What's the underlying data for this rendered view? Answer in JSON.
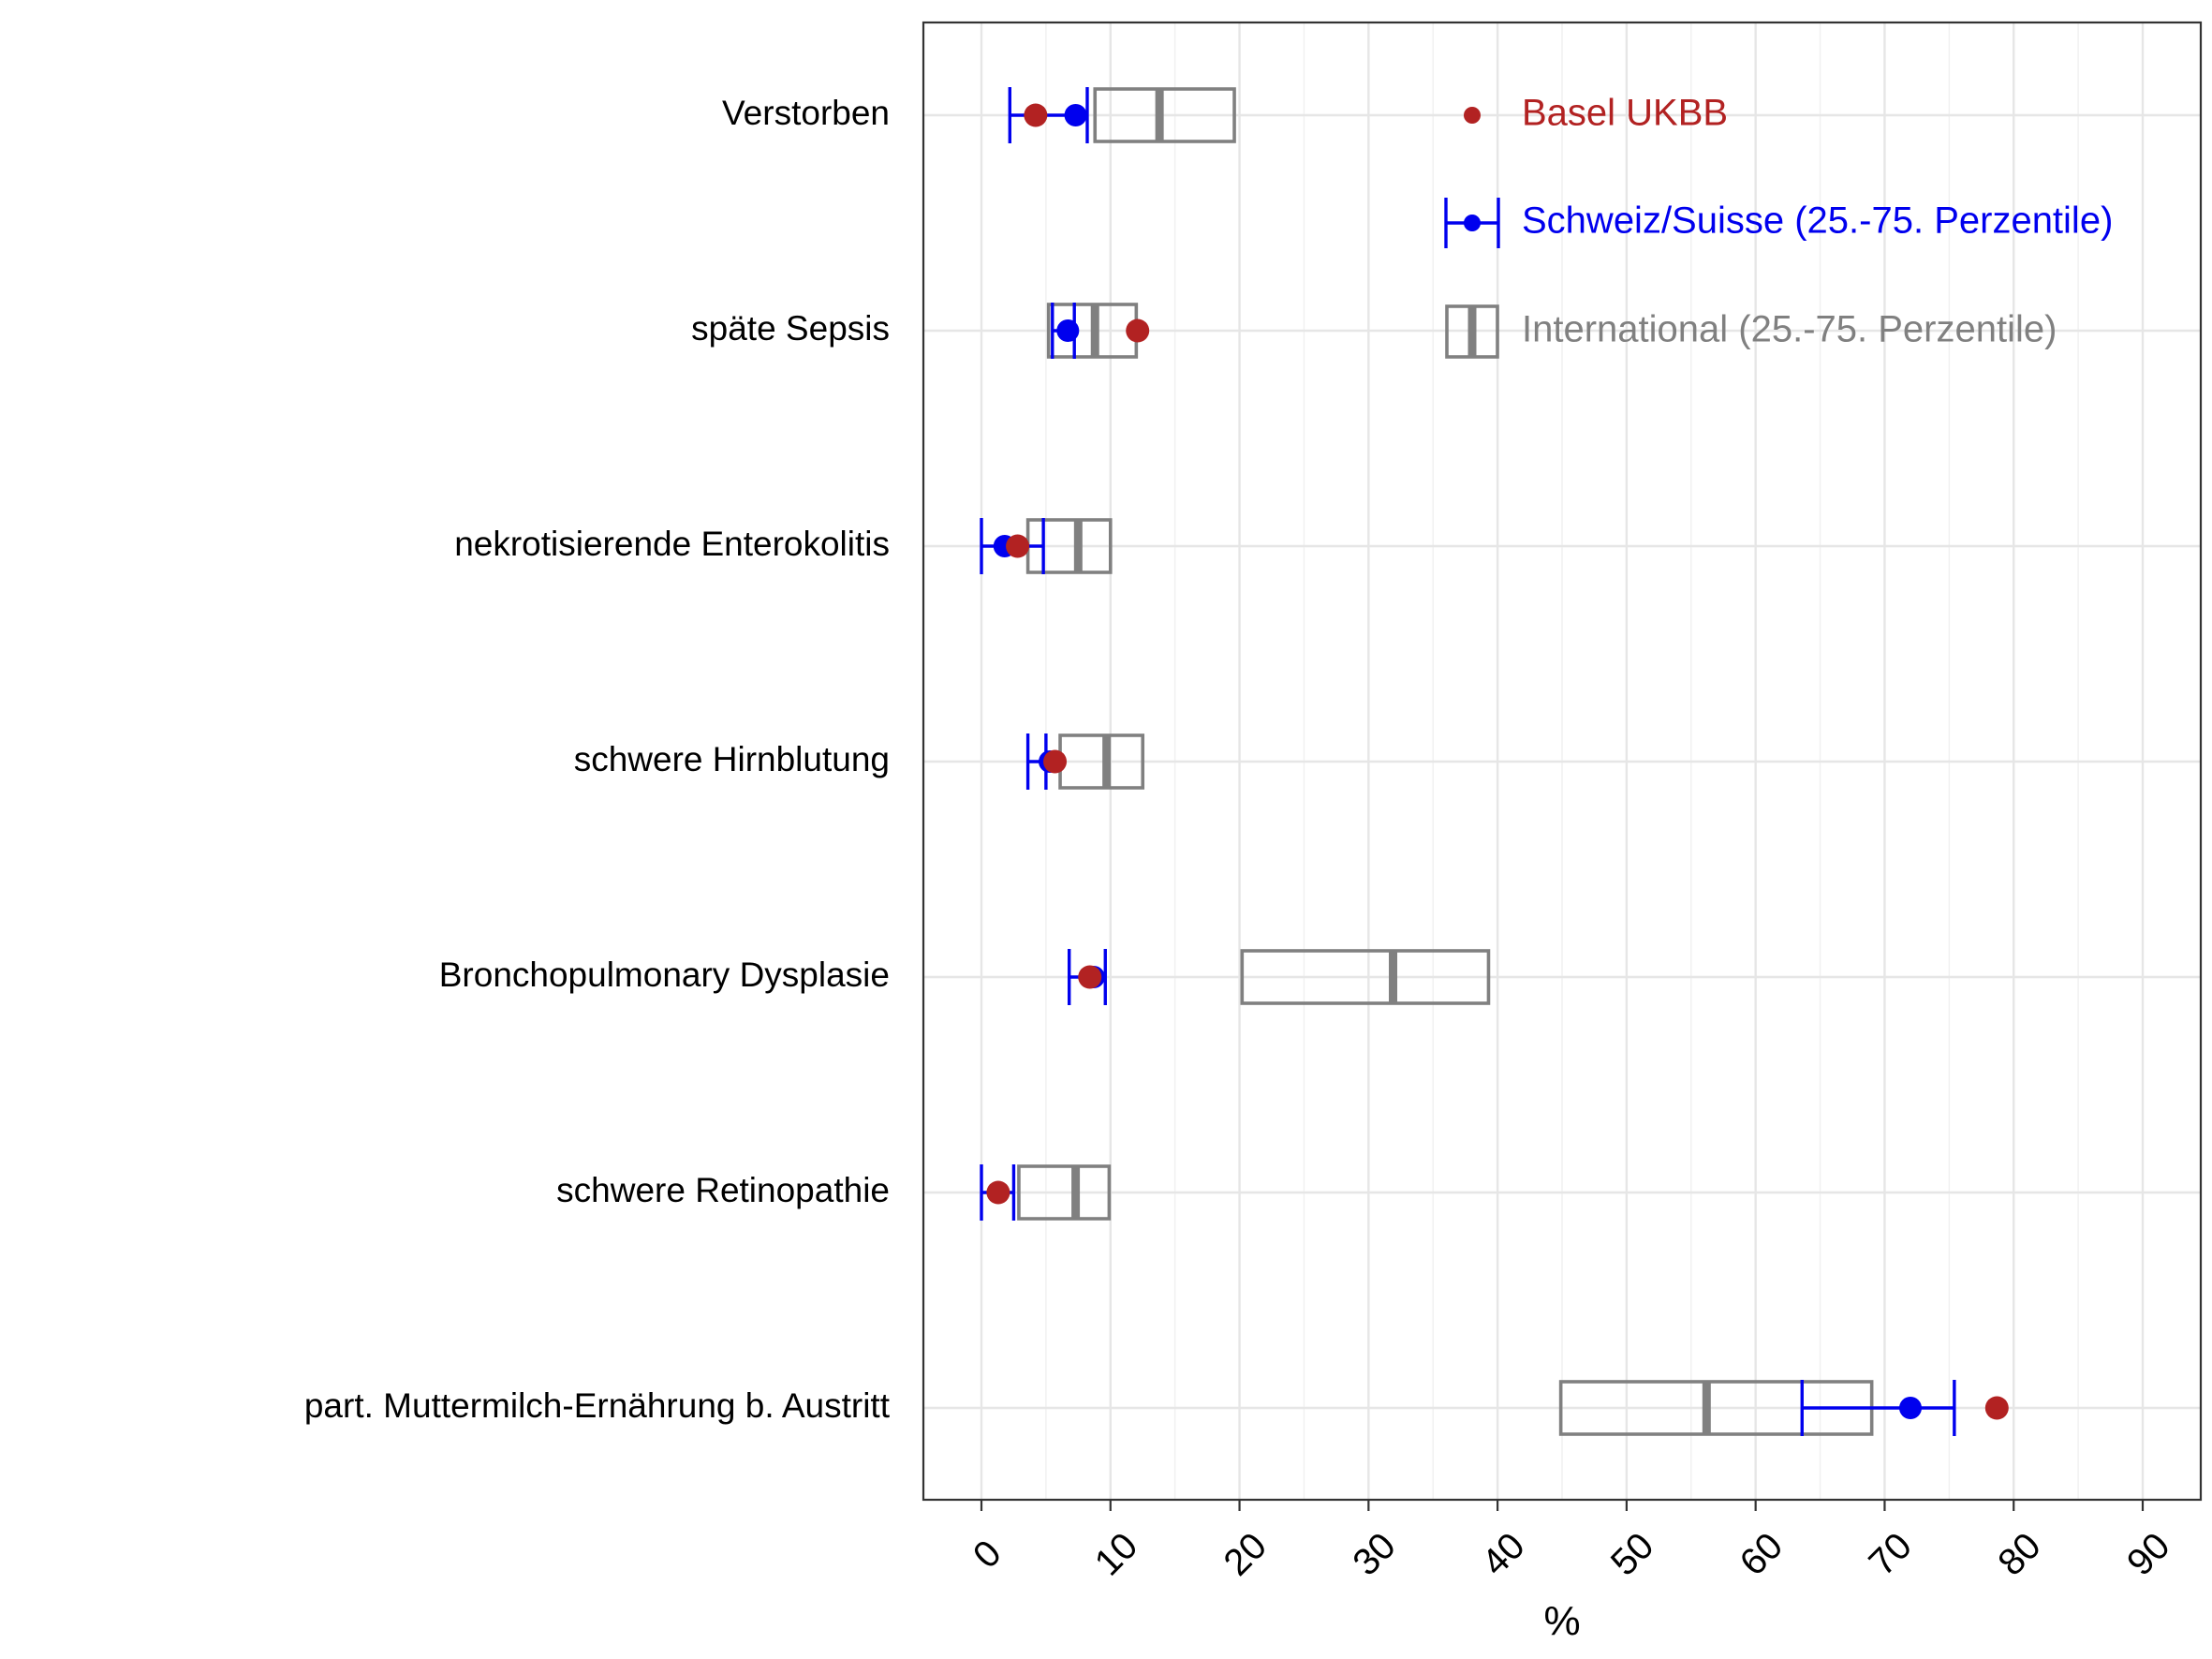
{
  "chart_data": {
    "type": "dot-range",
    "title": "",
    "xlabel": "%",
    "ylabel": "",
    "xlim": [
      -4.5,
      94.5
    ],
    "x_ticks": [
      0,
      10,
      20,
      30,
      40,
      50,
      60,
      70,
      80,
      90
    ],
    "x_tick_labels": [
      "0",
      "10",
      "20",
      "30",
      "40",
      "50",
      "60",
      "70",
      "80",
      "90"
    ],
    "grid": true,
    "legend_position": "top-right",
    "categories": [
      "Verstorben",
      "späte Sepsis",
      "nekrotisierende Enterokolitis",
      "schwere Hirnblutung",
      "Bronchopulmonary Dysplasie",
      "schwere Retinopathie",
      "part. Muttermilch-Ernährung b. Austritt"
    ],
    "series": [
      {
        "name": "Basel UKBB",
        "kind": "point",
        "color": "#b22222",
        "values": [
          4.2,
          12.1,
          2.8,
          5.7,
          8.4,
          1.3,
          78.7
        ]
      },
      {
        "name": "Schweiz/Suisse (25.-75. Perzentile)",
        "kind": "point-with-range",
        "color": "#0000ee",
        "median": [
          7.3,
          6.7,
          1.8,
          5.3,
          8.7,
          1.3,
          72.0
        ],
        "low": [
          2.2,
          5.5,
          0.0,
          3.6,
          6.8,
          0.0,
          63.6
        ],
        "high": [
          8.2,
          7.2,
          4.8,
          5.0,
          9.6,
          2.5,
          75.4
        ]
      },
      {
        "name": "International (25.-75. Perzentile)",
        "kind": "box",
        "color": "#808080",
        "q1": [
          8.8,
          5.2,
          3.6,
          6.1,
          20.2,
          2.9,
          44.9
        ],
        "median": [
          13.8,
          8.8,
          7.5,
          9.7,
          31.9,
          7.3,
          56.2
        ],
        "q3": [
          19.6,
          12.0,
          10.0,
          12.5,
          39.3,
          9.9,
          69.0
        ]
      }
    ]
  }
}
